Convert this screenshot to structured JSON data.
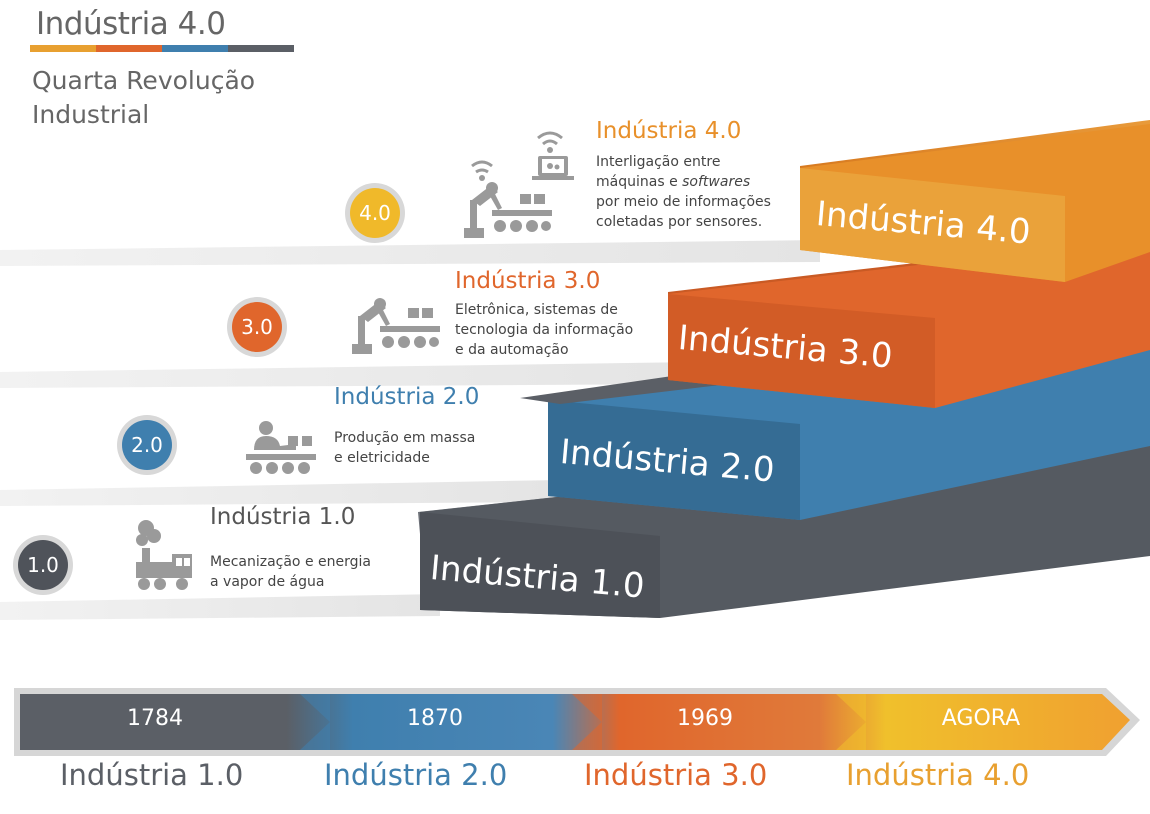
{
  "header": {
    "title": "Indústria 4.0",
    "subtitle_line1": "Quarta Revolução",
    "subtitle_line2": "Industrial"
  },
  "colors": {
    "gray": "#5b5f66",
    "blue": "#3f7fae",
    "orange": "#e0662c",
    "yellow": "#f0b92a",
    "amber": "#e8902a"
  },
  "stages": [
    {
      "badge": "1.0",
      "title": "Indústria 1.0",
      "desc_line1": "Mecanização e energia",
      "desc_line2": "a vapor de água",
      "desc_line3": "",
      "icon": "steam-locomotive-icon",
      "step_label": "Indústria 1.0"
    },
    {
      "badge": "2.0",
      "title": "Indústria 2.0",
      "desc_line1": "Produção em massa",
      "desc_line2": "e eletricidade",
      "desc_line3": "",
      "icon": "assembly-worker-icon",
      "step_label": "Indústria 2.0"
    },
    {
      "badge": "3.0",
      "title": "Indústria 3.0",
      "desc_line1": "Eletrônica, sistemas de",
      "desc_line2": "tecnologia da informação",
      "desc_line3": "e da automação",
      "icon": "robot-arm-conveyor-icon",
      "step_label": "Indústria 3.0"
    },
    {
      "badge": "4.0",
      "title": "Indústria 4.0",
      "desc_line1": "Interligação entre",
      "desc_line2a": "máquinas e ",
      "desc_line2b": "softwares",
      "desc_line3": "por meio de informações",
      "desc_line4": "coletadas por sensores.",
      "icon": "connected-robot-laptop-icon",
      "step_label": "Indústria 4.0"
    }
  ],
  "timeline": [
    {
      "year": "1784",
      "era": "Indústria 1.0"
    },
    {
      "year": "1870",
      "era": "Indústria 2.0"
    },
    {
      "year": "1969",
      "era": "Indústria 3.0"
    },
    {
      "year": "AGORA",
      "era": "Indústria 4.0"
    }
  ]
}
